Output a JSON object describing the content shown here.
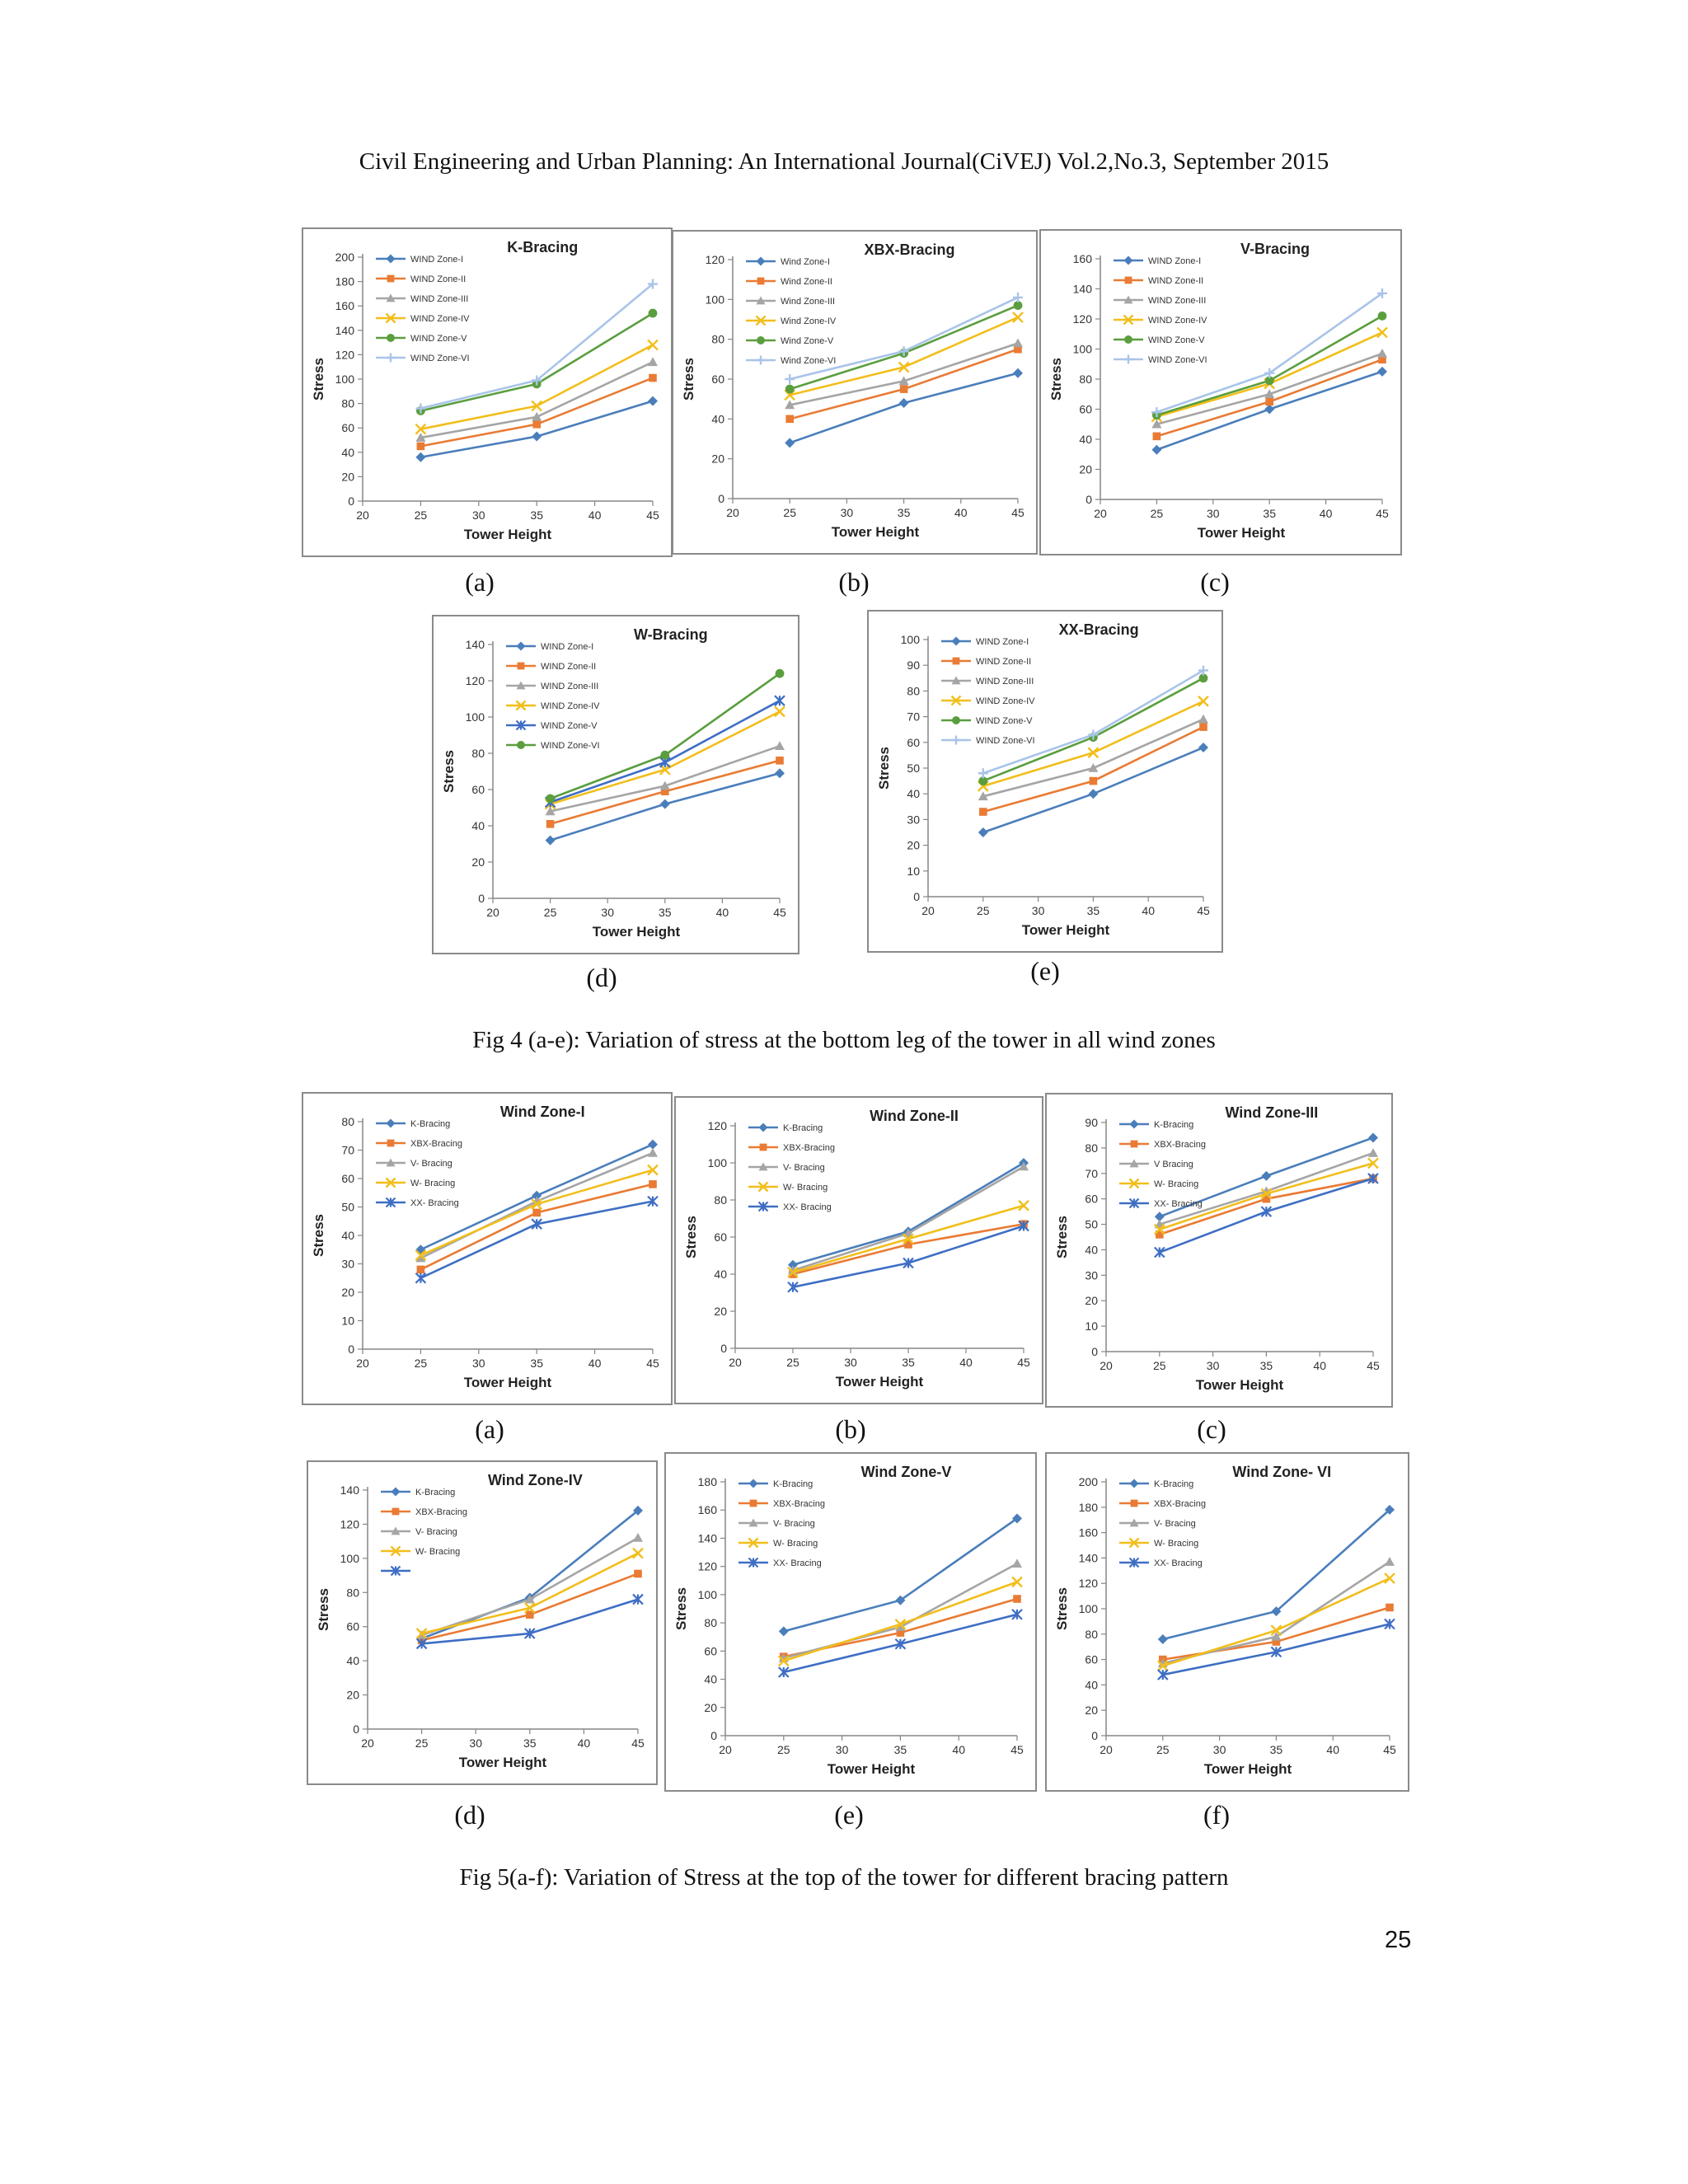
{
  "header": "Civil Engineering and Urban Planning: An International Journal(CiVEJ) Vol.2,No.3, September 2015",
  "fig4_caption": "Fig 4 (a-e): Variation of stress at the bottom leg of the tower in all wind zones",
  "fig5_caption": "Fig 5(a-f): Variation of Stress at the top of the tower for different bracing pattern",
  "page_number": "25",
  "colors": {
    "blue": "#4a7ebb",
    "orange": "#e97b34",
    "gray": "#a5a5a5",
    "yellow": "#f2be1a",
    "green": "#5a9e3e",
    "lightblue": "#a9c4e8",
    "navy": "#3e6ec4"
  },
  "chart_data": [
    {
      "id": "4a",
      "sublabel": "(a)",
      "type": "line",
      "title": "K-Bracing",
      "xlabel": "Tower Height",
      "ylabel": "Stress",
      "x": [
        25,
        35,
        45
      ],
      "xlim": [
        20,
        45
      ],
      "xticks": [
        20,
        25,
        30,
        35,
        40,
        45
      ],
      "ylim": [
        0,
        200
      ],
      "ystep": 20,
      "series": [
        {
          "name": "WIND Zone-I",
          "values": [
            36,
            53,
            82
          ],
          "color": "#4a7ebb",
          "marker": "diamond"
        },
        {
          "name": "WIND Zone-II",
          "values": [
            45,
            63,
            101
          ],
          "color": "#e97b34",
          "marker": "square"
        },
        {
          "name": "WIND Zone-III",
          "values": [
            52,
            69,
            114
          ],
          "color": "#a5a5a5",
          "marker": "triangle"
        },
        {
          "name": "WIND Zone-IV",
          "values": [
            59,
            78,
            128
          ],
          "color": "#f2be1a",
          "marker": "x"
        },
        {
          "name": "WIND Zone-V",
          "values": [
            74,
            96,
            154
          ],
          "color": "#5a9e3e",
          "marker": "circle"
        },
        {
          "name": "WIND Zone-VI",
          "values": [
            76,
            99,
            178
          ],
          "color": "#a9c4e8",
          "marker": "plus"
        }
      ]
    },
    {
      "id": "4b",
      "sublabel": "(b)",
      "type": "line",
      "title": "XBX-Bracing",
      "xlabel": "Tower Height",
      "ylabel": "Stress",
      "x": [
        25,
        35,
        45
      ],
      "xlim": [
        20,
        45
      ],
      "xticks": [
        20,
        25,
        30,
        35,
        40,
        45
      ],
      "ylim": [
        0,
        120
      ],
      "ystep": 20,
      "series": [
        {
          "name": "Wind Zone-I",
          "values": [
            28,
            48,
            63
          ],
          "color": "#4a7ebb",
          "marker": "diamond"
        },
        {
          "name": "Wind Zone-II",
          "values": [
            40,
            55,
            75
          ],
          "color": "#e97b34",
          "marker": "square"
        },
        {
          "name": "Wind Zone-III",
          "values": [
            47,
            59,
            78
          ],
          "color": "#a5a5a5",
          "marker": "triangle"
        },
        {
          "name": "Wind Zone-IV",
          "values": [
            52,
            66,
            91
          ],
          "color": "#f2be1a",
          "marker": "x"
        },
        {
          "name": "Wind Zone-V",
          "values": [
            55,
            73,
            97
          ],
          "color": "#5a9e3e",
          "marker": "circle"
        },
        {
          "name": "Wind Zone-VI",
          "values": [
            60,
            74,
            101
          ],
          "color": "#a9c4e8",
          "marker": "plus"
        }
      ]
    },
    {
      "id": "4c",
      "sublabel": "(c)",
      "type": "line",
      "title": "V-Bracing",
      "xlabel": "Tower Height",
      "ylabel": "Stress",
      "x": [
        25,
        35,
        45
      ],
      "xlim": [
        20,
        45
      ],
      "xticks": [
        20,
        25,
        30,
        35,
        40,
        45
      ],
      "ylim": [
        0,
        160
      ],
      "ystep": 20,
      "series": [
        {
          "name": "WIND Zone-I",
          "values": [
            33,
            60,
            85
          ],
          "color": "#4a7ebb",
          "marker": "diamond"
        },
        {
          "name": "WIND Zone-II",
          "values": [
            42,
            65,
            93
          ],
          "color": "#e97b34",
          "marker": "square"
        },
        {
          "name": "WIND Zone-III",
          "values": [
            50,
            70,
            97
          ],
          "color": "#a5a5a5",
          "marker": "triangle"
        },
        {
          "name": "WIND Zone-IV",
          "values": [
            55,
            77,
            111
          ],
          "color": "#f2be1a",
          "marker": "x"
        },
        {
          "name": "WIND Zone-V",
          "values": [
            56,
            79,
            122
          ],
          "color": "#5a9e3e",
          "marker": "circle"
        },
        {
          "name": "WIND Zone-VI",
          "values": [
            58,
            84,
            137
          ],
          "color": "#a9c4e8",
          "marker": "plus"
        }
      ]
    },
    {
      "id": "4d",
      "sublabel": "(d)",
      "type": "line",
      "title": "W-Bracing",
      "xlabel": "Tower Height",
      "ylabel": "Stress",
      "x": [
        25,
        35,
        45
      ],
      "xlim": [
        20,
        45
      ],
      "xticks": [
        20,
        25,
        30,
        35,
        40,
        45
      ],
      "ylim": [
        0,
        140
      ],
      "ystep": 20,
      "series": [
        {
          "name": "WIND Zone-I",
          "values": [
            32,
            52,
            69
          ],
          "color": "#4a7ebb",
          "marker": "diamond"
        },
        {
          "name": "WIND Zone-II",
          "values": [
            41,
            59,
            76
          ],
          "color": "#e97b34",
          "marker": "square"
        },
        {
          "name": "WIND Zone-III",
          "values": [
            48,
            62,
            84
          ],
          "color": "#a5a5a5",
          "marker": "triangle"
        },
        {
          "name": "WIND Zone-IV",
          "values": [
            52,
            71,
            103
          ],
          "color": "#f2be1a",
          "marker": "x"
        },
        {
          "name": "WIND Zone-V",
          "values": [
            53,
            75,
            109
          ],
          "color": "#3e6ec4",
          "marker": "star"
        },
        {
          "name": "WIND Zone-VI",
          "values": [
            55,
            79,
            124
          ],
          "color": "#5a9e3e",
          "marker": "circle"
        }
      ]
    },
    {
      "id": "4e",
      "sublabel": "(e)",
      "type": "line",
      "title": "XX-Bracing",
      "xlabel": "Tower Height",
      "ylabel": "Stress",
      "x": [
        25,
        35,
        45
      ],
      "xlim": [
        20,
        45
      ],
      "xticks": [
        20,
        25,
        30,
        35,
        40,
        45
      ],
      "ylim": [
        0,
        100
      ],
      "ystep": 10,
      "series": [
        {
          "name": "WIND Zone-I",
          "values": [
            25,
            40,
            58
          ],
          "color": "#4a7ebb",
          "marker": "diamond"
        },
        {
          "name": "WIND Zone-II",
          "values": [
            33,
            45,
            66
          ],
          "color": "#e97b34",
          "marker": "square"
        },
        {
          "name": "WIND Zone-III",
          "values": [
            39,
            50,
            69
          ],
          "color": "#a5a5a5",
          "marker": "triangle"
        },
        {
          "name": "WIND Zone-IV",
          "values": [
            43,
            56,
            76
          ],
          "color": "#f2be1a",
          "marker": "x"
        },
        {
          "name": "WIND Zone-V",
          "values": [
            45,
            62,
            85
          ],
          "color": "#5a9e3e",
          "marker": "circle"
        },
        {
          "name": "WIND Zone-VI",
          "values": [
            48,
            63,
            88
          ],
          "color": "#a9c4e8",
          "marker": "plus"
        }
      ]
    },
    {
      "id": "5a",
      "sublabel": "(a)",
      "type": "line",
      "title": "Wind Zone-I",
      "xlabel": "Tower Height",
      "ylabel": "Stress",
      "x": [
        25,
        35,
        45
      ],
      "xlim": [
        20,
        45
      ],
      "xticks": [
        20,
        25,
        30,
        35,
        40,
        45
      ],
      "ylim": [
        0,
        80
      ],
      "ystep": 10,
      "series": [
        {
          "name": "K-Bracing",
          "values": [
            35,
            54,
            72
          ],
          "color": "#4a7ebb",
          "marker": "diamond"
        },
        {
          "name": "XBX-Bracing",
          "values": [
            28,
            48,
            58
          ],
          "color": "#e97b34",
          "marker": "square"
        },
        {
          "name": "V- Bracing",
          "values": [
            32,
            52,
            69
          ],
          "color": "#a5a5a5",
          "marker": "triangle"
        },
        {
          "name": "W- Bracing",
          "values": [
            33,
            51,
            63
          ],
          "color": "#f2be1a",
          "marker": "x"
        },
        {
          "name": "XX- Bracing",
          "values": [
            25,
            44,
            52
          ],
          "color": "#3e6ec4",
          "marker": "star"
        }
      ]
    },
    {
      "id": "5b",
      "sublabel": "(b)",
      "type": "line",
      "title": "Wind Zone-II",
      "xlabel": "Tower Height",
      "ylabel": "Stress",
      "x": [
        25,
        35,
        45
      ],
      "xlim": [
        20,
        45
      ],
      "xticks": [
        20,
        25,
        30,
        35,
        40,
        45
      ],
      "ylim": [
        0,
        120
      ],
      "ystep": 20,
      "series": [
        {
          "name": "K-Bracing",
          "values": [
            45,
            63,
            100
          ],
          "color": "#4a7ebb",
          "marker": "diamond"
        },
        {
          "name": "XBX-Bracing",
          "values": [
            40,
            56,
            67
          ],
          "color": "#e97b34",
          "marker": "square"
        },
        {
          "name": "V- Bracing",
          "values": [
            42,
            62,
            98
          ],
          "color": "#a5a5a5",
          "marker": "triangle"
        },
        {
          "name": "W- Bracing",
          "values": [
            41,
            59,
            77
          ],
          "color": "#f2be1a",
          "marker": "x"
        },
        {
          "name": "XX- Bracing",
          "values": [
            33,
            46,
            66
          ],
          "color": "#3e6ec4",
          "marker": "star"
        }
      ]
    },
    {
      "id": "5c",
      "sublabel": "(c)",
      "type": "line",
      "title": "Wind Zone-III",
      "xlabel": "Tower Height",
      "ylabel": "Stress",
      "x": [
        25,
        35,
        45
      ],
      "xlim": [
        20,
        45
      ],
      "xticks": [
        20,
        25,
        30,
        35,
        40,
        45
      ],
      "ylim": [
        0,
        90
      ],
      "ystep": 10,
      "series": [
        {
          "name": "K-Bracing",
          "values": [
            53,
            69,
            84
          ],
          "color": "#4a7ebb",
          "marker": "diamond"
        },
        {
          "name": "XBX-Bracing",
          "values": [
            46,
            60,
            68
          ],
          "color": "#e97b34",
          "marker": "square"
        },
        {
          "name": "V Bracing",
          "values": [
            50,
            63,
            78
          ],
          "color": "#a5a5a5",
          "marker": "triangle"
        },
        {
          "name": "W- Bracing",
          "values": [
            48,
            62,
            74
          ],
          "color": "#f2be1a",
          "marker": "x"
        },
        {
          "name": "XX- Bracing",
          "values": [
            39,
            55,
            68
          ],
          "color": "#3e6ec4",
          "marker": "star"
        }
      ]
    },
    {
      "id": "5d",
      "sublabel": "(d)",
      "type": "line",
      "title": "Wind Zone-IV",
      "xlabel": "Tower Height",
      "ylabel": "Stress",
      "x": [
        25,
        35,
        45
      ],
      "xlim": [
        20,
        45
      ],
      "xticks": [
        20,
        25,
        30,
        35,
        40,
        45
      ],
      "ylim": [
        0,
        140
      ],
      "ystep": 20,
      "series": [
        {
          "name": "K-Bracing",
          "values": [
            53,
            77,
            128
          ],
          "color": "#4a7ebb",
          "marker": "diamond"
        },
        {
          "name": "XBX-Bracing",
          "values": [
            52,
            67,
            91
          ],
          "color": "#e97b34",
          "marker": "square"
        },
        {
          "name": "V- Bracing",
          "values": [
            55,
            76,
            112
          ],
          "color": "#a5a5a5",
          "marker": "triangle"
        },
        {
          "name": "W- Bracing",
          "values": [
            56,
            71,
            103
          ],
          "color": "#f2be1a",
          "marker": "x"
        },
        {
          "name": "",
          "values": [
            50,
            56,
            76
          ],
          "color": "#3e6ec4",
          "marker": "star"
        }
      ]
    },
    {
      "id": "5e",
      "sublabel": "(e)",
      "type": "line",
      "title": "Wind Zone-V",
      "xlabel": "Tower Height",
      "ylabel": "Stress",
      "x": [
        25,
        35,
        45
      ],
      "xlim": [
        20,
        45
      ],
      "xticks": [
        20,
        25,
        30,
        35,
        40,
        45
      ],
      "ylim": [
        0,
        180
      ],
      "ystep": 20,
      "series": [
        {
          "name": "K-Bracing",
          "values": [
            74,
            96,
            154
          ],
          "color": "#4a7ebb",
          "marker": "diamond"
        },
        {
          "name": "XBX-Bracing",
          "values": [
            56,
            73,
            97
          ],
          "color": "#e97b34",
          "marker": "square"
        },
        {
          "name": "V- Bracing",
          "values": [
            55,
            77,
            122
          ],
          "color": "#a5a5a5",
          "marker": "triangle"
        },
        {
          "name": "W- Bracing",
          "values": [
            53,
            79,
            109
          ],
          "color": "#f2be1a",
          "marker": "x"
        },
        {
          "name": "XX- Bracing",
          "values": [
            45,
            65,
            86
          ],
          "color": "#3e6ec4",
          "marker": "star"
        }
      ]
    },
    {
      "id": "5f",
      "sublabel": "(f)",
      "type": "line",
      "title": "Wind Zone- VI",
      "xlabel": "Tower Height",
      "ylabel": "Stress",
      "x": [
        25,
        35,
        45
      ],
      "xlim": [
        20,
        45
      ],
      "xticks": [
        20,
        25,
        30,
        35,
        40,
        45
      ],
      "ylim": [
        0,
        200
      ],
      "ystep": 20,
      "series": [
        {
          "name": "K-Bracing",
          "values": [
            76,
            98,
            178
          ],
          "color": "#4a7ebb",
          "marker": "diamond"
        },
        {
          "name": "XBX-Bracing",
          "values": [
            60,
            74,
            101
          ],
          "color": "#e97b34",
          "marker": "square"
        },
        {
          "name": "V- Bracing",
          "values": [
            57,
            78,
            137
          ],
          "color": "#a5a5a5",
          "marker": "triangle"
        },
        {
          "name": "W- Bracing",
          "values": [
            55,
            83,
            124
          ],
          "color": "#f2be1a",
          "marker": "x"
        },
        {
          "name": "XX- Bracing",
          "values": [
            48,
            66,
            88
          ],
          "color": "#3e6ec4",
          "marker": "star"
        }
      ]
    }
  ]
}
